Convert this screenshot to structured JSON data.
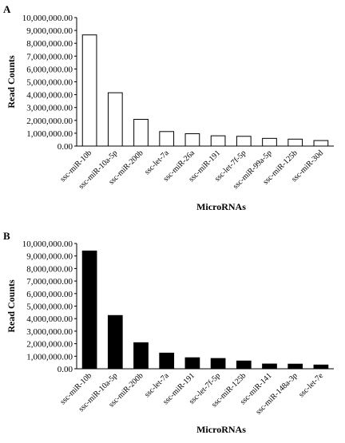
{
  "chart_data": [
    {
      "type": "bar",
      "panel_label": "A",
      "bar_color": "#ffffff",
      "bar_stroke": "#000000",
      "xlabel": "MicroRNAs",
      "ylabel": "Read Counts",
      "ylim": [
        0,
        10000000
      ],
      "y_ticks": [
        "0.00",
        "1,000,000.00",
        "2,000,000.00",
        "3,000,000.00",
        "4,000,000.00",
        "5,000,000.00",
        "6,000,000.00",
        "7,000,000.00",
        "8,000,000.00",
        "9,000,000.00",
        "10,000,000.00"
      ],
      "categories": [
        "ssc-miR-10b",
        "ssc-miR-10a-5p",
        "ssc-miR-200b",
        "ssc-let-7a",
        "ssc-miR-26a",
        "ssc-miR-191",
        "ssc-let-7f-5p",
        "ssc-miR-99a-5p",
        "ssc-miR-125b",
        "ssc-miR-30d"
      ],
      "values": [
        8650000,
        4150000,
        2080000,
        1130000,
        960000,
        800000,
        760000,
        600000,
        540000,
        430000
      ],
      "grid": false
    },
    {
      "type": "bar",
      "panel_label": "B",
      "bar_color": "#000000",
      "bar_stroke": "#000000",
      "xlabel": "MicroRNAs",
      "ylabel": "Read Counts",
      "ylim": [
        0,
        10000000
      ],
      "y_ticks": [
        "0.00",
        "1,000,000.00",
        "2,000,000.00",
        "3,000,000.00",
        "4,000,000.00",
        "5,000,000.00",
        "6,000,000.00",
        "7,000,000.00",
        "8,000,000.00",
        "9,000,000.00",
        "10,000,000.00"
      ],
      "categories": [
        "ssc-miR-10b",
        "ssc-miR-10a-5p",
        "ssc-miR-200b",
        "ssc-let-7a",
        "ssc-miR-191",
        "ssc-let-7f-5p",
        "ssc-miR-125b",
        "ssc-miR-141",
        "ssc-miR-148a-3p",
        "ssc-let-7e"
      ],
      "values": [
        9400000,
        4250000,
        2080000,
        1250000,
        880000,
        820000,
        620000,
        380000,
        370000,
        300000
      ],
      "grid": false
    }
  ]
}
